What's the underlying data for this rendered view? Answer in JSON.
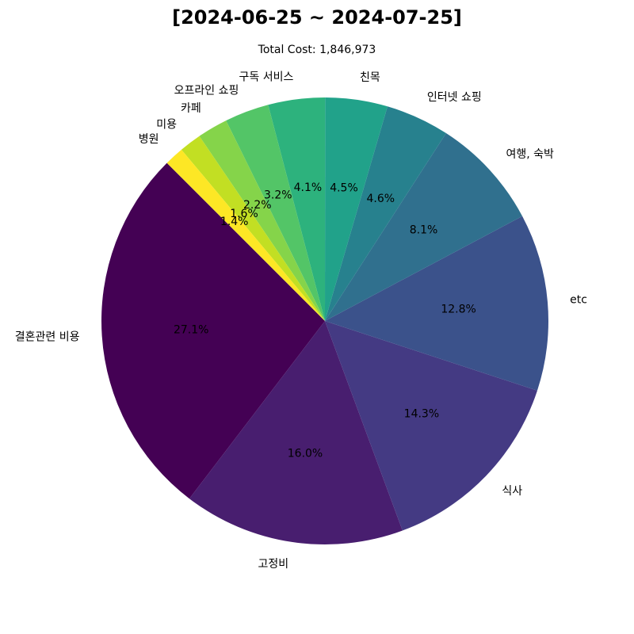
{
  "chart_data": {
    "type": "pie",
    "title": "[2024-06-25 ~ 2024-07-25]",
    "subtitle": "Total Cost: 1,846,973",
    "start_angle_deg": 135,
    "direction": "counterclockwise",
    "slices": [
      {
        "label": "결혼관련 비용",
        "value": 27.1,
        "pct_text": "27.1%",
        "color": "#440154"
      },
      {
        "label": "고정비",
        "value": 16.0,
        "pct_text": "16.0%",
        "color": "#481e6f"
      },
      {
        "label": "식사",
        "value": 14.3,
        "pct_text": "14.3%",
        "color": "#443a83"
      },
      {
        "label": "etc",
        "value": 12.8,
        "pct_text": "12.8%",
        "color": "#3b528b"
      },
      {
        "label": "여행, 숙박",
        "value": 8.1,
        "pct_text": "8.1%",
        "color": "#30708e"
      },
      {
        "label": "인터넷 쇼핑",
        "value": 4.6,
        "pct_text": "4.6%",
        "color": "#27818e"
      },
      {
        "label": "친목",
        "value": 4.5,
        "pct_text": "4.5%",
        "color": "#21a28a"
      },
      {
        "label": "구독 서비스",
        "value": 4.1,
        "pct_text": "4.1%",
        "color": "#2db27d"
      },
      {
        "label": "오프라인 쇼핑",
        "value": 3.2,
        "pct_text": "3.2%",
        "color": "#53c567"
      },
      {
        "label": "카페",
        "value": 2.2,
        "pct_text": "2.2%",
        "color": "#85d44a"
      },
      {
        "label": "미용",
        "value": 1.6,
        "pct_text": "1.6%",
        "color": "#c2df23"
      },
      {
        "label": "병원",
        "value": 1.4,
        "pct_text": "1.4%",
        "color": "#fde725"
      }
    ]
  }
}
